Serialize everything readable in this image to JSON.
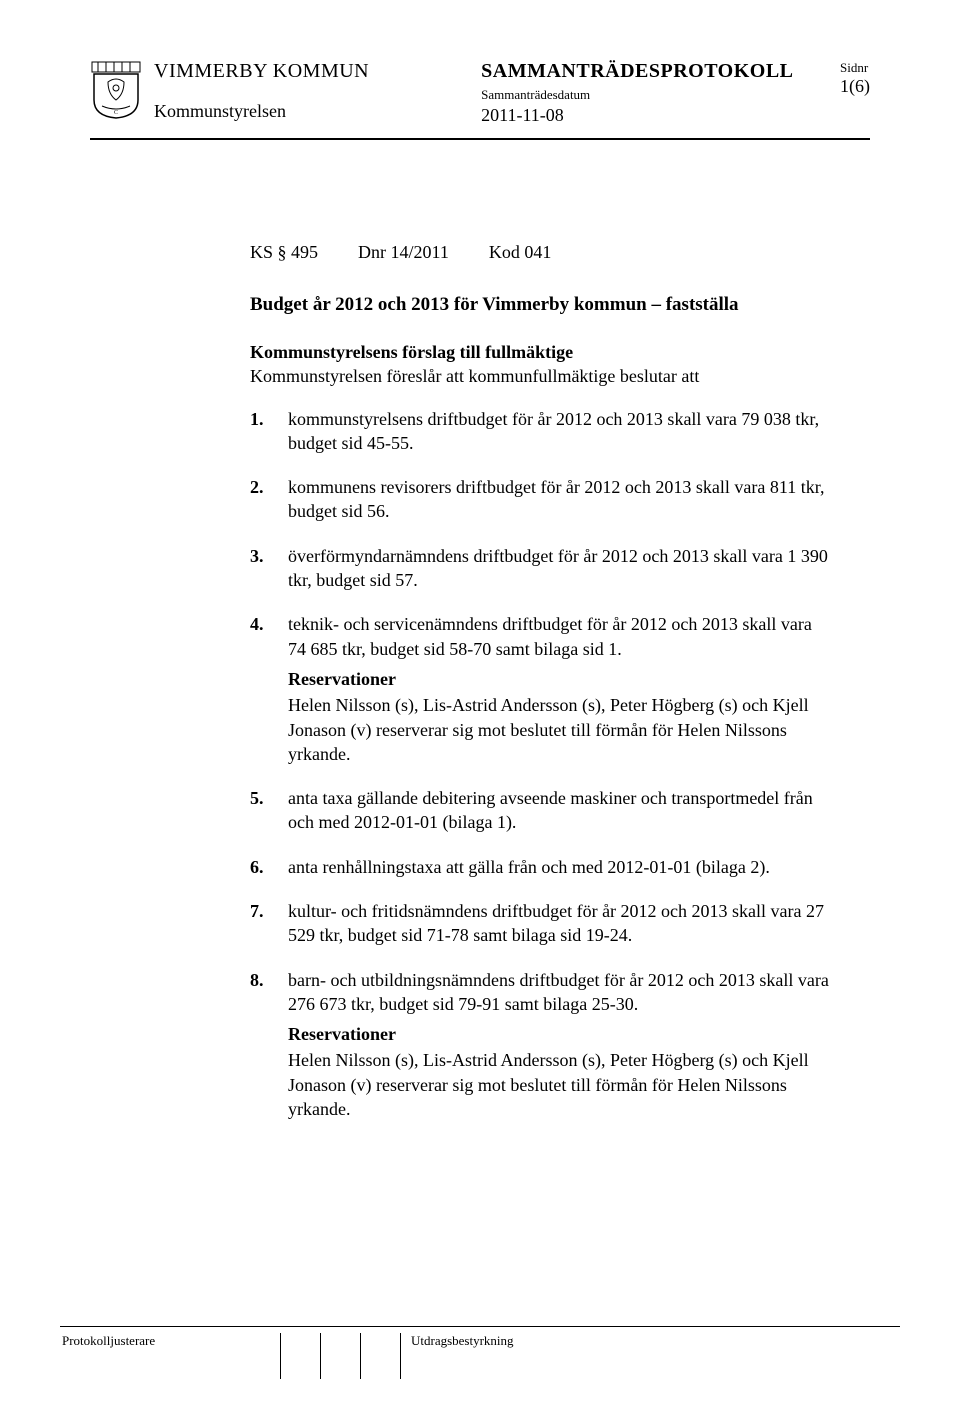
{
  "header": {
    "org": "VIMMERBY KOMMUN",
    "sub_org": "Kommunstyrelsen",
    "title": "SAMMANTRÄDESPROTOKOLL",
    "subtitle": "Sammanträdesdatum",
    "date": "2011-11-08",
    "sidnr_label": "Sidnr",
    "page_num": "1(6)"
  },
  "ref": {
    "ks": "KS § 495",
    "dnr": "Dnr 14/2011",
    "kod": "Kod 041"
  },
  "doc_title": "Budget år 2012 och 2013 för Vimmerby kommun – fastställa",
  "sub_head": "Kommunstyrelsens förslag till fullmäktige",
  "intro": "Kommunstyrelsen föreslår att kommunfullmäktige beslutar att",
  "items": [
    {
      "num": "1.",
      "text": "kommunstyrelsens driftbudget för år 2012 och 2013 skall vara 79 038 tkr, budget sid 45-55."
    },
    {
      "num": "2.",
      "text": "kommunens revisorers driftbudget för år 2012 och 2013 skall vara 811 tkr, budget sid 56."
    },
    {
      "num": "3.",
      "text": "överförmyndarnämndens driftbudget för år 2012 och 2013 skall vara 1 390 tkr, budget sid 57."
    },
    {
      "num": "4.",
      "text": "teknik- och servicenämndens driftbudget för år 2012 och 2013 skall vara 74 685 tkr, budget sid 58-70 samt bilaga sid 1.",
      "reservation": {
        "head": "Reservationer",
        "text": "Helen Nilsson (s), Lis-Astrid Andersson (s), Peter Högberg (s) och Kjell Jonason (v) reserverar sig mot beslutet till förmån för Helen Nilssons yrkande."
      }
    },
    {
      "num": "5.",
      "text": "anta taxa gällande debitering avseende maskiner och transportmedel från och med 2012-01-01 (bilaga 1)."
    },
    {
      "num": "6.",
      "text": "anta renhållningstaxa att gälla från och med 2012-01-01 (bilaga 2)."
    },
    {
      "num": "7.",
      "text": "kultur- och fritidsnämndens driftbudget för år 2012 och 2013 skall vara 27 529 tkr, budget sid 71-78 samt bilaga sid 19-24."
    },
    {
      "num": "8.",
      "text": "barn- och utbildningsnämndens driftbudget för år 2012 och 2013 skall vara 276 673 tkr, budget sid 79-91 samt bilaga 25-30.",
      "reservation": {
        "head": "Reservationer",
        "text": "Helen Nilsson (s), Lis-Astrid Andersson (s), Peter Högberg (s) och Kjell Jonason (v) reserverar sig mot beslutet till förmån för Helen Nilssons yrkande."
      }
    }
  ],
  "footer": {
    "left": "Protokolljusterare",
    "right": "Utdragsbestyrkning"
  },
  "colors": {
    "text": "#000000",
    "background": "#ffffff",
    "rule": "#000000"
  }
}
